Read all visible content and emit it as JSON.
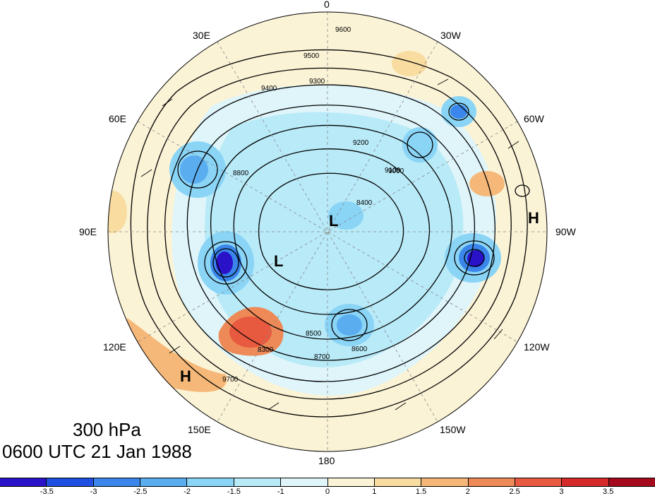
{
  "title": {
    "level": "300 hPa",
    "time": "0600 UTC 21 Jan 1988"
  },
  "longitude_labels": [
    "0",
    "30W",
    "60W",
    "90W",
    "120W",
    "150W",
    "180",
    "150E",
    "120E",
    "90E",
    "60E",
    "30E"
  ],
  "contour_labels": [
    "9600",
    "9500",
    "9300",
    "9400",
    "9200",
    "9100",
    "9000",
    "8800",
    "8700",
    "8600",
    "8500",
    "8400",
    "8300",
    "9700"
  ],
  "highs": [
    "H",
    "H"
  ],
  "lows": [
    "L",
    "L"
  ],
  "colorbar": {
    "colors": [
      "#2a12c8",
      "#1e4fe0",
      "#3a86ea",
      "#5aaef0",
      "#8ad4f6",
      "#b8eaf8",
      "#dff5fa",
      "#fbf3d6",
      "#f8dca0",
      "#f5b878",
      "#ee8a58",
      "#e85a40",
      "#d42a2a",
      "#a40a1c"
    ],
    "ticks": [
      "-3.5",
      "-3",
      "-2.5",
      "-2",
      "-1.5",
      "-1",
      "0",
      "1",
      "1.5",
      "2",
      "2.5",
      "3",
      "3.5"
    ]
  }
}
